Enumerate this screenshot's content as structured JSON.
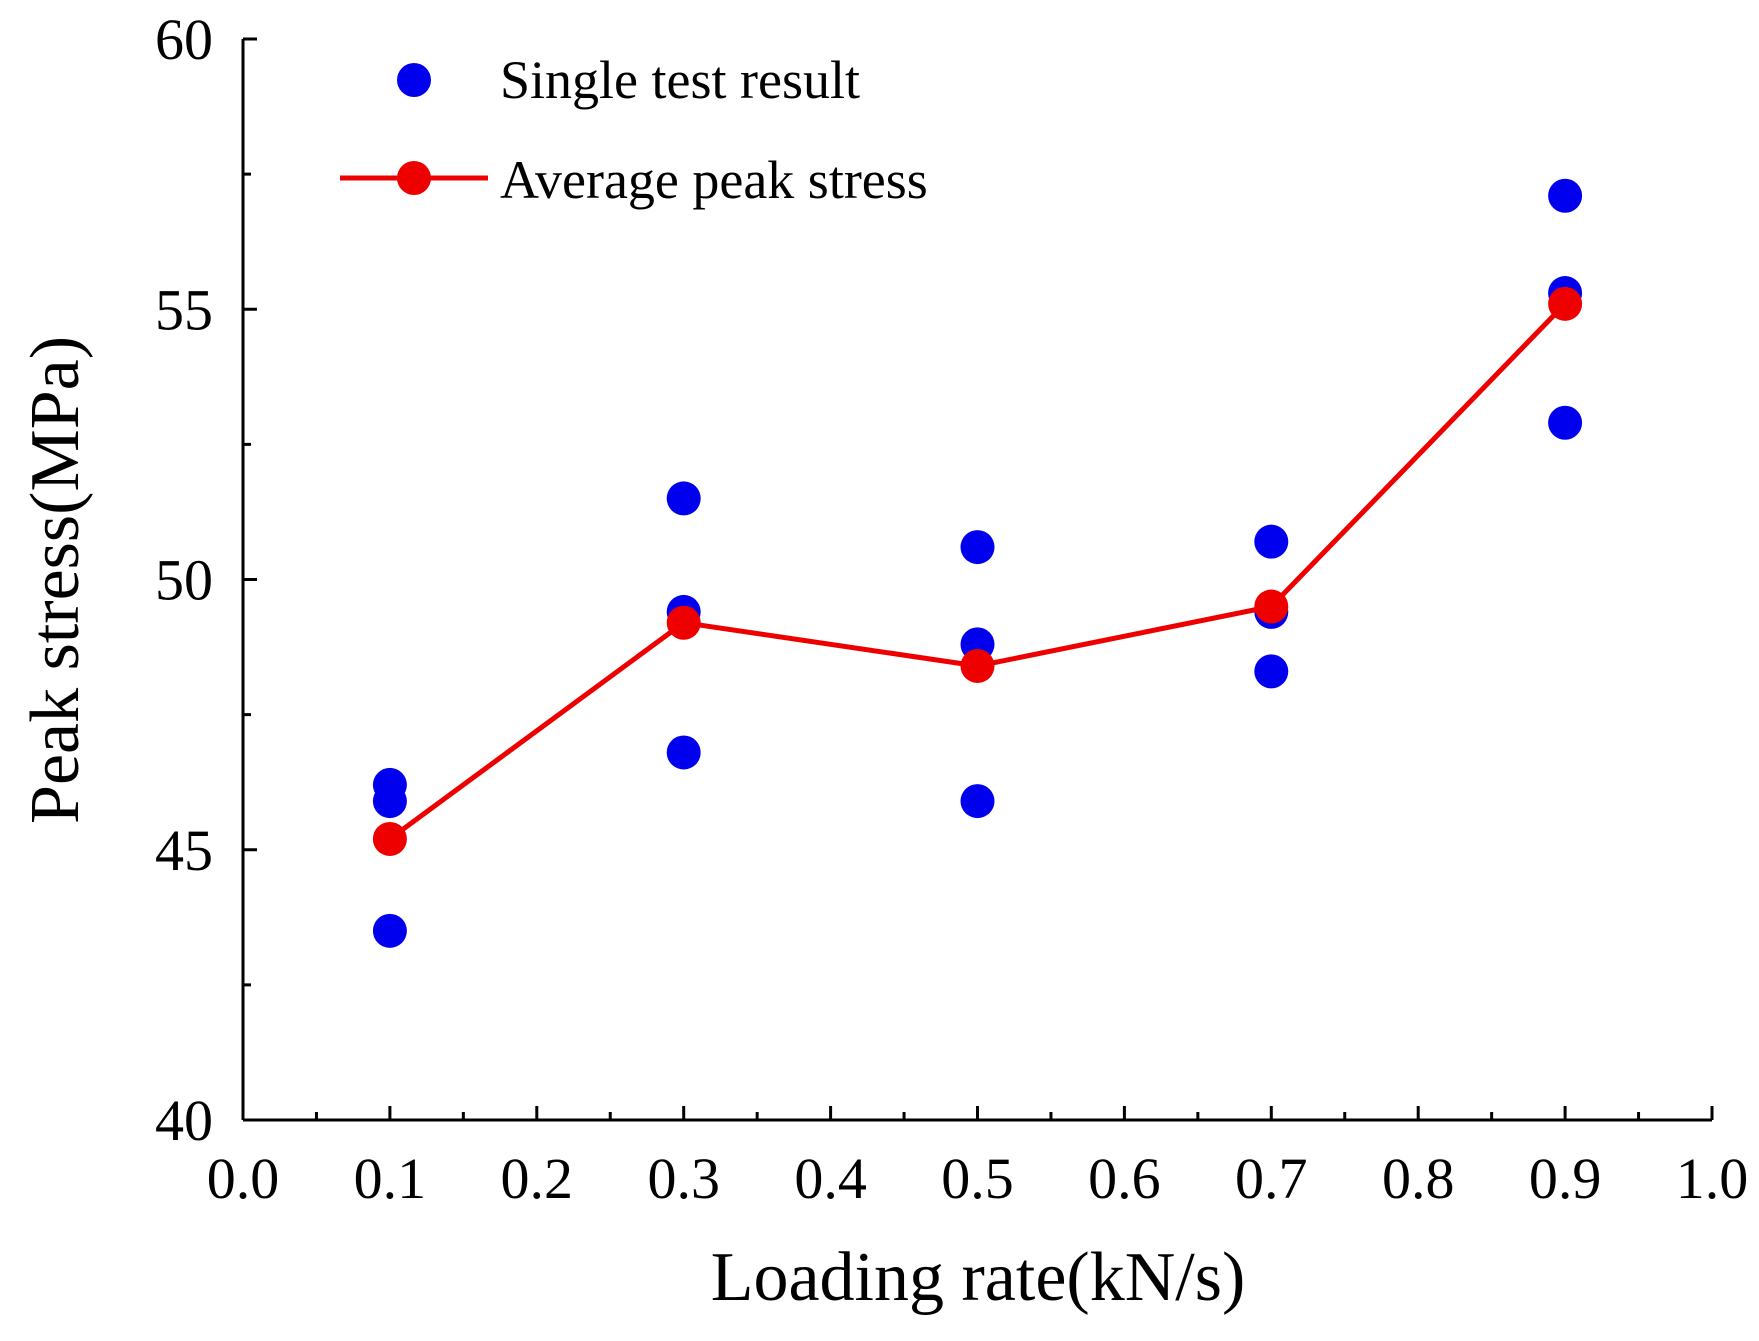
{
  "chart_data": {
    "type": "scatter",
    "xlabel": "Loading rate(kN/s)",
    "ylabel": "Peak stress(MPa)",
    "xlim": [
      0.0,
      1.0
    ],
    "ylim": [
      40,
      60
    ],
    "x_ticks": [
      "0.0",
      "0.1",
      "0.2",
      "0.3",
      "0.4",
      "0.5",
      "0.6",
      "0.7",
      "0.8",
      "0.9",
      "1.0"
    ],
    "y_ticks": [
      "40",
      "45",
      "50",
      "55",
      "60"
    ],
    "x_minor_step": 0.05,
    "y_minor_step": 2.5,
    "legend_position": "top-left",
    "series": [
      {
        "name": "Single test result",
        "style": "markers",
        "color": "#0000ee",
        "points": [
          [
            0.1,
            46.2
          ],
          [
            0.1,
            45.9
          ],
          [
            0.1,
            43.5
          ],
          [
            0.3,
            51.5
          ],
          [
            0.3,
            49.4
          ],
          [
            0.3,
            46.8
          ],
          [
            0.5,
            50.6
          ],
          [
            0.5,
            48.8
          ],
          [
            0.5,
            45.9
          ],
          [
            0.7,
            50.7
          ],
          [
            0.7,
            49.4
          ],
          [
            0.7,
            48.3
          ],
          [
            0.9,
            57.1
          ],
          [
            0.9,
            55.3
          ],
          [
            0.9,
            52.9
          ]
        ]
      },
      {
        "name": "Average peak stress",
        "style": "line+markers",
        "color": "#ee0000",
        "points": [
          [
            0.1,
            45.2
          ],
          [
            0.3,
            49.2
          ],
          [
            0.5,
            48.4
          ],
          [
            0.7,
            49.5
          ],
          [
            0.9,
            55.1
          ]
        ]
      }
    ]
  }
}
